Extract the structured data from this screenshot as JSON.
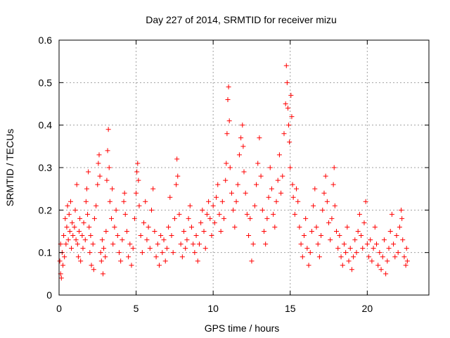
{
  "chart_data": {
    "type": "scatter",
    "title": "Day 227 of 2014, SRMTID for receiver mizu",
    "xlabel": "GPS time / hours",
    "ylabel": "SRMTID / TECUs",
    "xlim": [
      0,
      24
    ],
    "ylim": [
      0,
      0.6
    ],
    "xticks": [
      0,
      5,
      10,
      15,
      20
    ],
    "xtick_labels": [
      "0",
      "5",
      "10",
      "15",
      "20"
    ],
    "yticks": [
      0,
      0.1,
      0.2,
      0.3,
      0.4,
      0.5,
      0.6
    ],
    "ytick_labels": [
      "0",
      "0.1",
      "0.2",
      "0.3",
      "0.4",
      "0.5",
      "0.6"
    ],
    "grid": true,
    "marker": "plus",
    "marker_color": "#ff0000",
    "series": [
      {
        "name": "SRMTID",
        "points": [
          [
            0.05,
            0.08
          ],
          [
            0.1,
            0.05
          ],
          [
            0.1,
            0.12
          ],
          [
            0.15,
            0.04
          ],
          [
            0.2,
            0.1
          ],
          [
            0.25,
            0.07
          ],
          [
            0.3,
            0.14
          ],
          [
            0.35,
            0.09
          ],
          [
            0.4,
            0.18
          ],
          [
            0.45,
            0.12
          ],
          [
            0.5,
            0.16
          ],
          [
            0.55,
            0.21
          ],
          [
            0.6,
            0.13
          ],
          [
            0.65,
            0.19
          ],
          [
            0.7,
            0.15
          ],
          [
            0.75,
            0.22
          ],
          [
            0.8,
            0.11
          ],
          [
            0.85,
            0.17
          ],
          [
            0.9,
            0.14
          ],
          [
            1.0,
            0.16
          ],
          [
            1.05,
            0.2
          ],
          [
            1.1,
            0.13
          ],
          [
            1.15,
            0.26
          ],
          [
            1.2,
            0.12
          ],
          [
            1.25,
            0.09
          ],
          [
            1.3,
            0.15
          ],
          [
            1.35,
            0.18
          ],
          [
            1.4,
            0.08
          ],
          [
            1.5,
            0.14
          ],
          [
            1.55,
            0.11
          ],
          [
            1.6,
            0.17
          ],
          [
            1.7,
            0.13
          ],
          [
            1.75,
            0.22
          ],
          [
            1.8,
            0.25
          ],
          [
            1.85,
            0.19
          ],
          [
            1.9,
            0.29
          ],
          [
            1.95,
            0.16
          ],
          [
            2.0,
            0.1
          ],
          [
            2.05,
            0.14
          ],
          [
            2.1,
            0.07
          ],
          [
            2.2,
            0.12
          ],
          [
            2.25,
            0.06
          ],
          [
            2.3,
            0.18
          ],
          [
            2.4,
            0.21
          ],
          [
            2.5,
            0.26
          ],
          [
            2.55,
            0.31
          ],
          [
            2.6,
            0.33
          ],
          [
            2.65,
            0.28
          ],
          [
            2.7,
            0.1
          ],
          [
            2.75,
            0.08
          ],
          [
            2.8,
            0.13
          ],
          [
            2.85,
            0.05
          ],
          [
            2.9,
            0.11
          ],
          [
            3.0,
            0.09
          ],
          [
            3.05,
            0.15
          ],
          [
            3.1,
            0.27
          ],
          [
            3.15,
            0.34
          ],
          [
            3.2,
            0.39
          ],
          [
            3.25,
            0.3
          ],
          [
            3.3,
            0.22
          ],
          [
            3.4,
            0.18
          ],
          [
            3.45,
            0.25
          ],
          [
            3.5,
            0.12
          ],
          [
            3.6,
            0.16
          ],
          [
            3.7,
            0.2
          ],
          [
            3.8,
            0.14
          ],
          [
            3.9,
            0.1
          ],
          [
            4.0,
            0.08
          ],
          [
            4.1,
            0.13
          ],
          [
            4.2,
            0.22
          ],
          [
            4.25,
            0.24
          ],
          [
            4.3,
            0.19
          ],
          [
            4.4,
            0.15
          ],
          [
            4.5,
            0.09
          ],
          [
            4.6,
            0.12
          ],
          [
            4.7,
            0.07
          ],
          [
            4.8,
            0.11
          ],
          [
            4.9,
            0.18
          ],
          [
            5.0,
            0.24
          ],
          [
            5.05,
            0.29
          ],
          [
            5.1,
            0.31
          ],
          [
            5.15,
            0.27
          ],
          [
            5.2,
            0.21
          ],
          [
            5.3,
            0.14
          ],
          [
            5.4,
            0.1
          ],
          [
            5.5,
            0.17
          ],
          [
            5.6,
            0.22
          ],
          [
            5.7,
            0.13
          ],
          [
            5.8,
            0.16
          ],
          [
            5.9,
            0.11
          ],
          [
            6.0,
            0.2
          ],
          [
            6.1,
            0.25
          ],
          [
            6.2,
            0.15
          ],
          [
            6.3,
            0.09
          ],
          [
            6.4,
            0.12
          ],
          [
            6.5,
            0.07
          ],
          [
            6.6,
            0.14
          ],
          [
            6.7,
            0.1
          ],
          [
            6.8,
            0.13
          ],
          [
            6.9,
            0.08
          ],
          [
            7.0,
            0.11
          ],
          [
            7.1,
            0.16
          ],
          [
            7.2,
            0.23
          ],
          [
            7.3,
            0.14
          ],
          [
            7.4,
            0.1
          ],
          [
            7.5,
            0.18
          ],
          [
            7.6,
            0.26
          ],
          [
            7.65,
            0.32
          ],
          [
            7.7,
            0.28
          ],
          [
            7.8,
            0.19
          ],
          [
            7.9,
            0.12
          ],
          [
            8.0,
            0.09
          ],
          [
            8.1,
            0.15
          ],
          [
            8.2,
            0.11
          ],
          [
            8.3,
            0.13
          ],
          [
            8.4,
            0.18
          ],
          [
            8.5,
            0.21
          ],
          [
            8.6,
            0.16
          ],
          [
            8.7,
            0.12
          ],
          [
            8.8,
            0.1
          ],
          [
            8.9,
            0.14
          ],
          [
            9.0,
            0.08
          ],
          [
            9.1,
            0.12
          ],
          [
            9.2,
            0.17
          ],
          [
            9.3,
            0.2
          ],
          [
            9.4,
            0.15
          ],
          [
            9.5,
            0.11
          ],
          [
            9.6,
            0.19
          ],
          [
            9.7,
            0.22
          ],
          [
            9.8,
            0.18
          ],
          [
            9.9,
            0.14
          ],
          [
            10.0,
            0.21
          ],
          [
            10.1,
            0.17
          ],
          [
            10.2,
            0.23
          ],
          [
            10.3,
            0.26
          ],
          [
            10.4,
            0.19
          ],
          [
            10.5,
            0.15
          ],
          [
            10.6,
            0.22
          ],
          [
            10.7,
            0.18
          ],
          [
            10.8,
            0.27
          ],
          [
            10.85,
            0.31
          ],
          [
            10.9,
            0.38
          ],
          [
            10.95,
            0.46
          ],
          [
            11.0,
            0.49
          ],
          [
            11.05,
            0.41
          ],
          [
            11.1,
            0.3
          ],
          [
            11.2,
            0.24
          ],
          [
            11.3,
            0.2
          ],
          [
            11.4,
            0.16
          ],
          [
            11.5,
            0.22
          ],
          [
            11.6,
            0.26
          ],
          [
            11.7,
            0.33
          ],
          [
            11.8,
            0.37
          ],
          [
            11.9,
            0.4
          ],
          [
            11.95,
            0.35
          ],
          [
            12.0,
            0.29
          ],
          [
            12.1,
            0.24
          ],
          [
            12.2,
            0.19
          ],
          [
            12.3,
            0.14
          ],
          [
            12.4,
            0.18
          ],
          [
            12.5,
            0.08
          ],
          [
            12.6,
            0.12
          ],
          [
            12.7,
            0.21
          ],
          [
            12.8,
            0.26
          ],
          [
            12.9,
            0.31
          ],
          [
            13.0,
            0.37
          ],
          [
            13.1,
            0.28
          ],
          [
            13.2,
            0.2
          ],
          [
            13.3,
            0.15
          ],
          [
            13.4,
            0.12
          ],
          [
            13.5,
            0.18
          ],
          [
            13.6,
            0.23
          ],
          [
            13.7,
            0.3
          ],
          [
            13.8,
            0.25
          ],
          [
            13.9,
            0.19
          ],
          [
            14.0,
            0.16
          ],
          [
            14.1,
            0.22
          ],
          [
            14.2,
            0.27
          ],
          [
            14.3,
            0.33
          ],
          [
            14.4,
            0.24
          ],
          [
            14.5,
            0.28
          ],
          [
            14.6,
            0.38
          ],
          [
            14.7,
            0.45
          ],
          [
            14.75,
            0.54
          ],
          [
            14.8,
            0.5
          ],
          [
            14.85,
            0.44
          ],
          [
            14.9,
            0.4
          ],
          [
            14.95,
            0.36
          ],
          [
            15.0,
            0.3
          ],
          [
            15.05,
            0.47
          ],
          [
            15.1,
            0.42
          ],
          [
            15.15,
            0.26
          ],
          [
            15.2,
            0.23
          ],
          [
            15.3,
            0.19
          ],
          [
            15.4,
            0.25
          ],
          [
            15.5,
            0.22
          ],
          [
            15.6,
            0.16
          ],
          [
            15.7,
            0.12
          ],
          [
            15.8,
            0.09
          ],
          [
            15.9,
            0.14
          ],
          [
            16.0,
            0.18
          ],
          [
            16.1,
            0.11
          ],
          [
            16.2,
            0.07
          ],
          [
            16.3,
            0.1
          ],
          [
            16.4,
            0.15
          ],
          [
            16.5,
            0.21
          ],
          [
            16.6,
            0.25
          ],
          [
            16.7,
            0.16
          ],
          [
            16.8,
            0.12
          ],
          [
            16.9,
            0.09
          ],
          [
            17.0,
            0.14
          ],
          [
            17.1,
            0.2
          ],
          [
            17.2,
            0.24
          ],
          [
            17.3,
            0.28
          ],
          [
            17.4,
            0.22
          ],
          [
            17.5,
            0.17
          ],
          [
            17.6,
            0.13
          ],
          [
            17.7,
            0.18
          ],
          [
            17.8,
            0.26
          ],
          [
            17.85,
            0.3
          ],
          [
            17.9,
            0.21
          ],
          [
            18.0,
            0.15
          ],
          [
            18.1,
            0.11
          ],
          [
            18.2,
            0.14
          ],
          [
            18.3,
            0.09
          ],
          [
            18.4,
            0.07
          ],
          [
            18.5,
            0.12
          ],
          [
            18.6,
            0.1
          ],
          [
            18.7,
            0.16
          ],
          [
            18.8,
            0.08
          ],
          [
            18.9,
            0.11
          ],
          [
            19.0,
            0.06
          ],
          [
            19.1,
            0.09
          ],
          [
            19.2,
            0.13
          ],
          [
            19.3,
            0.1
          ],
          [
            19.4,
            0.15
          ],
          [
            19.5,
            0.19
          ],
          [
            19.6,
            0.14
          ],
          [
            19.7,
            0.11
          ],
          [
            19.8,
            0.17
          ],
          [
            19.9,
            0.22
          ],
          [
            20.0,
            0.12
          ],
          [
            20.1,
            0.09
          ],
          [
            20.2,
            0.13
          ],
          [
            20.3,
            0.08
          ],
          [
            20.4,
            0.11
          ],
          [
            20.5,
            0.16
          ],
          [
            20.6,
            0.12
          ],
          [
            20.7,
            0.07
          ],
          [
            20.8,
            0.1
          ],
          [
            20.9,
            0.06
          ],
          [
            21.0,
            0.09
          ],
          [
            21.1,
            0.13
          ],
          [
            21.2,
            0.05
          ],
          [
            21.3,
            0.08
          ],
          [
            21.4,
            0.11
          ],
          [
            21.5,
            0.15
          ],
          [
            21.6,
            0.19
          ],
          [
            21.7,
            0.12
          ],
          [
            21.8,
            0.09
          ],
          [
            21.9,
            0.14
          ],
          [
            22.0,
            0.1
          ],
          [
            22.1,
            0.16
          ],
          [
            22.2,
            0.2
          ],
          [
            22.25,
            0.18
          ],
          [
            22.3,
            0.13
          ],
          [
            22.4,
            0.09
          ],
          [
            22.5,
            0.07
          ],
          [
            22.55,
            0.11
          ],
          [
            22.6,
            0.08
          ]
        ]
      }
    ]
  }
}
